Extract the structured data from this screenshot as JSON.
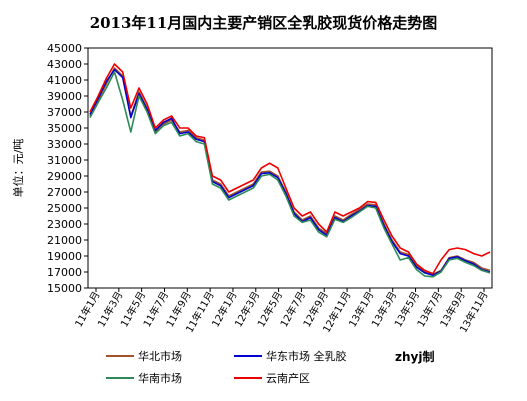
{
  "chart_data": {
    "type": "line",
    "title": "2013年11月国内主要产销区全乳胶现货价格走势图",
    "ylabel": "单位：元/吨",
    "ylim": [
      15000,
      45000
    ],
    "yticks": [
      15000,
      17000,
      19000,
      21000,
      23000,
      25000,
      27000,
      29000,
      31000,
      33000,
      35000,
      37000,
      39000,
      41000,
      43000,
      45000
    ],
    "x_tick_labels": [
      "11年1月",
      "11年3月",
      "11年5月",
      "11年7月",
      "11年9月",
      "11年11月",
      "12年1月",
      "12年3月",
      "12年5月",
      "12年7月",
      "12年9月",
      "12年11月",
      "13年1月",
      "13年3月",
      "13年5月",
      "13年7月",
      "13年9月",
      "13年11月"
    ],
    "grid": false,
    "legend_placement": "bottom",
    "credit": "zhyj制",
    "series": [
      {
        "name": "华北市场",
        "color": "#a0522d",
        "values": [
          36500,
          38500,
          40500,
          42500,
          41500,
          36500,
          39500,
          37500,
          34500,
          35500,
          36000,
          34500,
          34700,
          33800,
          33500,
          28500,
          28000,
          26500,
          27000,
          27500,
          28000,
          29500,
          29600,
          29000,
          27000,
          24500,
          23500,
          24000,
          22500,
          21800,
          24000,
          23500,
          24200,
          24800,
          25500,
          25400,
          23000,
          21000,
          19500,
          19200,
          17800,
          17000,
          16700,
          17200,
          18800,
          19000,
          18500,
          18200,
          17500,
          17200
        ]
      },
      {
        "name": "华东市场 全乳胶",
        "color": "#0000cc",
        "values": [
          36700,
          38700,
          40800,
          42300,
          41300,
          36300,
          39300,
          37300,
          34700,
          35700,
          36200,
          34300,
          34500,
          33600,
          33300,
          28300,
          27800,
          26300,
          26800,
          27300,
          27800,
          29300,
          29400,
          28800,
          26800,
          24300,
          23300,
          23800,
          22300,
          21600,
          23800,
          23300,
          24000,
          24600,
          25300,
          25200,
          22800,
          20800,
          19300,
          19000,
          17600,
          16900,
          16600,
          17100,
          18700,
          18900,
          18400,
          18000,
          17300,
          17000
        ]
      },
      {
        "name": "华南市场",
        "color": "#2e8b57",
        "values": [
          36300,
          38200,
          40000,
          42000,
          38500,
          34500,
          39000,
          37000,
          34300,
          35300,
          35700,
          34000,
          34300,
          33300,
          33000,
          28000,
          27500,
          26000,
          26500,
          27000,
          27500,
          29000,
          29200,
          28500,
          26500,
          24000,
          23200,
          23500,
          22000,
          21400,
          23600,
          23200,
          23800,
          24500,
          25200,
          25000,
          22500,
          20500,
          18500,
          18800,
          17300,
          16500,
          16400,
          17000,
          18500,
          18700,
          18200,
          17800,
          17200,
          16900
        ]
      },
      {
        "name": "云南产区",
        "color": "#ee0000",
        "values": [
          37000,
          39000,
          41200,
          43000,
          42000,
          37500,
          40000,
          38000,
          35000,
          36000,
          36500,
          35000,
          35000,
          34000,
          33800,
          29000,
          28500,
          27000,
          27500,
          28000,
          28500,
          30000,
          30600,
          30000,
          27500,
          25000,
          24000,
          24500,
          23000,
          22000,
          24500,
          24000,
          24500,
          25000,
          25800,
          25700,
          23500,
          21500,
          20000,
          19500,
          18000,
          17200,
          16800,
          18500,
          19800,
          20000,
          19800,
          19300,
          19000,
          19500
        ]
      }
    ]
  }
}
